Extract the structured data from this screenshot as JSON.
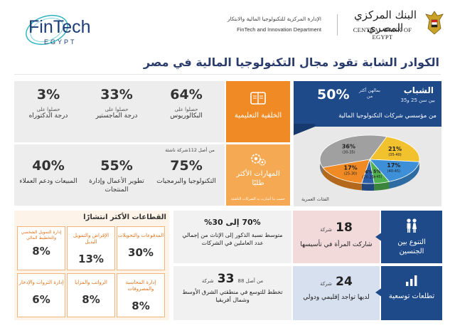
{
  "header": {
    "fintech_logo": "FinTech",
    "fintech_sub": "EGYPT",
    "dept_ar": "الإدارة المركزية للتكنولوجيا المالية والابتكار",
    "dept_en": "FinTech and Innovation Department",
    "bank_ar": "البنك المركزي المصري",
    "bank_en": "CENTRAL BANK OF EGYPT"
  },
  "title": "الكوادر الشابة تقود مجال التكنولوجيا المالية في مصر",
  "youth": {
    "title": "الشباب",
    "range": "بين سن 25 و35",
    "pct": "50%",
    "small": "بمالهن أكثر من",
    "desc": "من مؤسسي شركات التكنولوجيا المالية",
    "age_label": "الفئات العمرية",
    "slices": [
      {
        "label": "21%",
        "range": "(35-40)",
        "value": 21,
        "color": "#f2c12e"
      },
      {
        "label": "17%",
        "range": "(40-45)",
        "value": 17,
        "color": "#3d8fd8"
      },
      {
        "label": "5%",
        "range": "(+45)",
        "value": 5,
        "color": "#4fb04f"
      },
      {
        "label": "4%",
        "range": "(20-25)",
        "value": 4,
        "color": "#2b5ea8"
      },
      {
        "label": "17%",
        "range": "(25-30)",
        "value": 17,
        "color": "#f08a24"
      },
      {
        "label": "36%",
        "range": "(30-35)",
        "value": 36,
        "color": "#a0a0a0"
      }
    ]
  },
  "education": {
    "label": "الخلفية التعليمية",
    "stats": [
      {
        "pct": "64%",
        "sub": "حصلوا على",
        "text": "البكالوريوس"
      },
      {
        "pct": "33%",
        "sub": "حصلوا على",
        "text": "درجة الماجستير"
      },
      {
        "pct": "3%",
        "sub": "حصلوا على",
        "text": "درجة الدكتوراه"
      }
    ]
  },
  "skills": {
    "label": "المهارات الأكثر طلبًا",
    "note": "من أصل 112شركة ناشئة",
    "small_note": "حسب ما أشارت به الشركات الناشئة",
    "stats": [
      {
        "pct": "75%",
        "text": "التكنولوجيا والبرمجيات"
      },
      {
        "pct": "55%",
        "text": "تطوير الأعمال وإدارة المنتجات"
      },
      {
        "pct": "40%",
        "text": "المبيعات ودعم العملاء"
      }
    ]
  },
  "sectors": {
    "title": "القطاعات الأكثر انتشارًا",
    "items": [
      {
        "name": "المدفوعات والتحويلات",
        "pct": "30%"
      },
      {
        "name": "الإقراض والتمويل البديل",
        "pct": "13%"
      },
      {
        "name": "إدارة التمويل الشخصي والتخطيط المالي",
        "pct": "8%"
      },
      {
        "name": "إدارة المحاسبة والمصروفات",
        "pct": "8%"
      },
      {
        "name": "الرواتب والمزايا",
        "pct": "8%"
      },
      {
        "name": "إدارة الثروات والإدخار",
        "pct": "6%"
      }
    ]
  },
  "gender": {
    "label": "التنوع بين الجنسين",
    "count": "18",
    "count_unit": "شركة",
    "count_text": "شاركت المرأة في تأسيسها",
    "ratio": "70% إلى 30%",
    "ratio_text": "متوسط نسبة الذكور إلى الإناث من إجمالي عدد العاملين في الشركات"
  },
  "expansion": {
    "label": "تطلعات توسعية",
    "count": "24",
    "count_unit": "شركة",
    "count_text": "لديها تواجد إقليمي ودولي",
    "num": "33",
    "num_prefix": "من أصل 88",
    "num_unit": "شركة",
    "num_text": "تخطط للتوسع في منطقتي الشرق الأوسط وشمال أفريقيا"
  }
}
